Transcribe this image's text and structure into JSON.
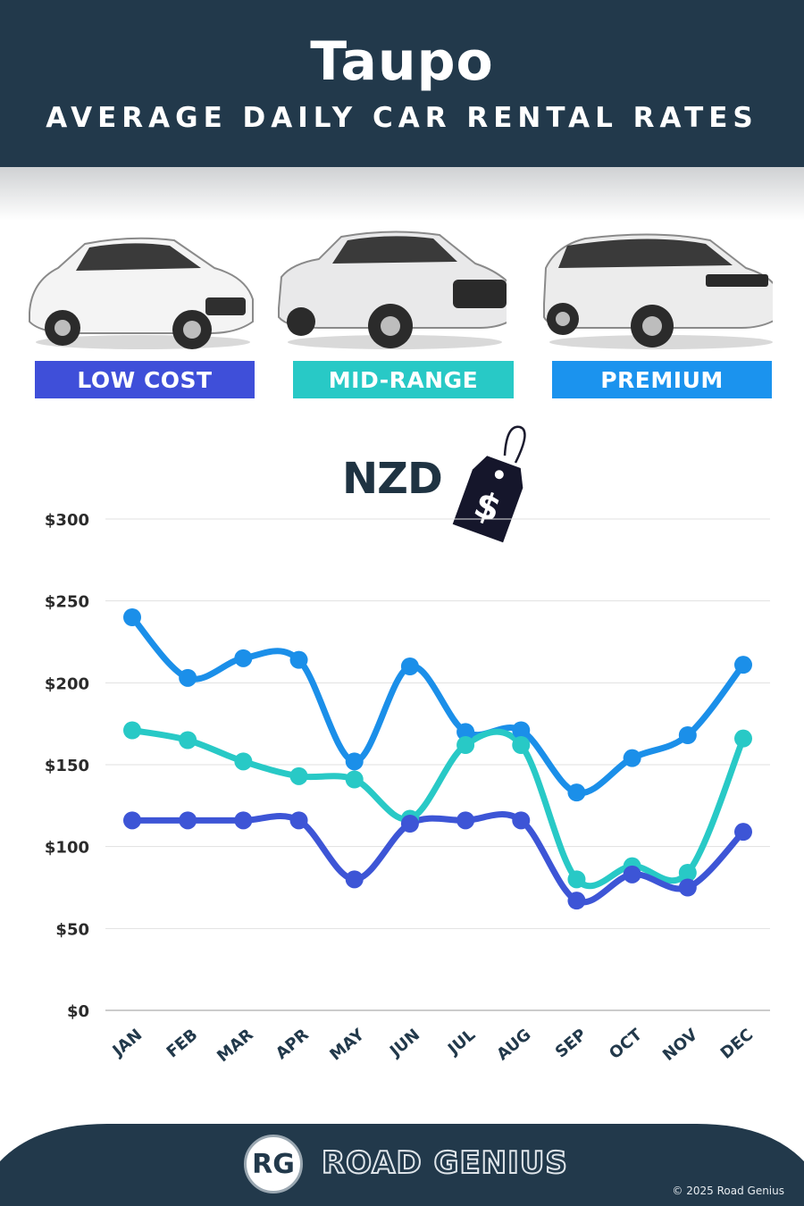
{
  "header": {
    "city": "Taupo",
    "subtitle": "AVERAGE DAILY CAR RENTAL RATES"
  },
  "categories_badges": [
    {
      "label": "LOW COST",
      "color": "#3f4fd9"
    },
    {
      "label": "MID-RANGE",
      "color": "#28c9c6"
    },
    {
      "label": "PREMIUM",
      "color": "#1b93ee"
    }
  ],
  "currency": {
    "label": "NZD",
    "symbol": "$"
  },
  "chart_data": {
    "type": "line",
    "categories": [
      "JAN",
      "FEB",
      "MAR",
      "APR",
      "MAY",
      "JUN",
      "JUL",
      "AUG",
      "SEP",
      "OCT",
      "NOV",
      "DEC"
    ],
    "series": [
      {
        "name": "PREMIUM",
        "color": "#1b8fe9",
        "values": [
          240,
          203,
          215,
          214,
          152,
          210,
          170,
          171,
          133,
          154,
          168,
          211
        ]
      },
      {
        "name": "MID-RANGE",
        "color": "#28c9c6",
        "values": [
          171,
          165,
          152,
          143,
          141,
          117,
          162,
          162,
          80,
          88,
          84,
          166
        ]
      },
      {
        "name": "LOW COST",
        "color": "#3d55d6",
        "values": [
          116,
          116,
          116,
          116,
          80,
          114,
          116,
          116,
          67,
          83,
          75,
          109
        ]
      }
    ],
    "yticks": [
      "$0",
      "$50",
      "$100",
      "$150",
      "$200",
      "$250",
      "$300"
    ],
    "ylim": [
      0,
      300
    ],
    "grid": true
  },
  "footer": {
    "logo": "RG",
    "brand": "ROAD GENIUS",
    "copyright": "© 2025 Road Genius"
  }
}
